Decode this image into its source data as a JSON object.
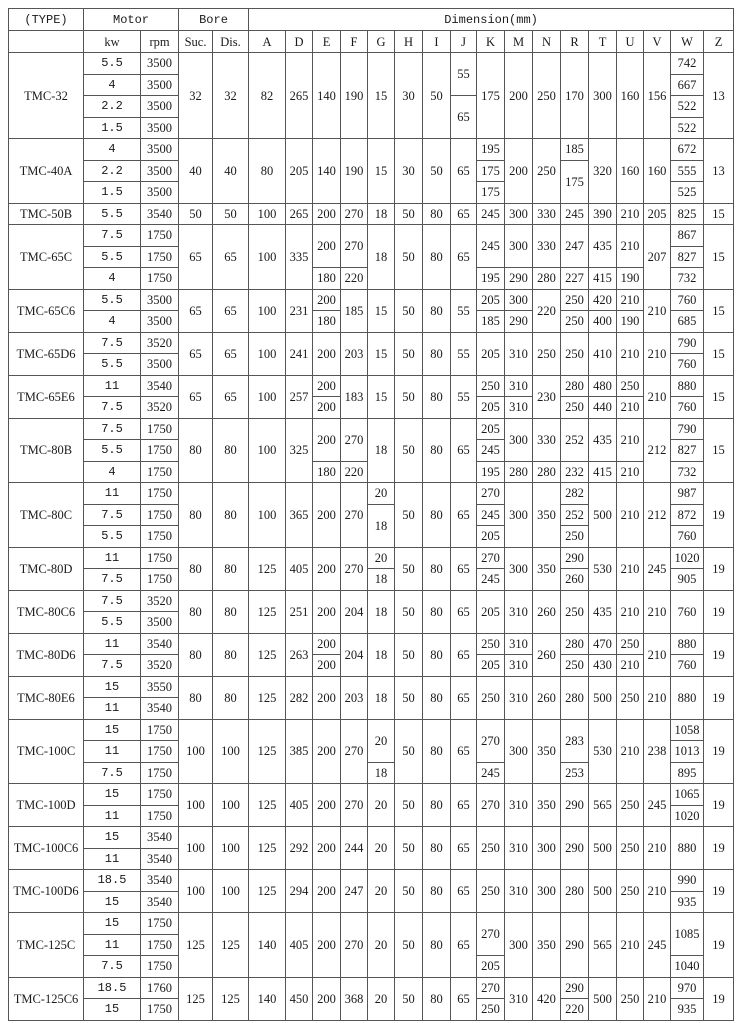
{
  "header": {
    "type": "(TYPE)",
    "motor": "Motor",
    "bore": "Bore",
    "dimension": "Dimension(mm)",
    "kw": "kw",
    "rpm": "rpm",
    "suc": "Suc.",
    "dis": "Dis.",
    "dims": [
      "A",
      "D",
      "E",
      "F",
      "G",
      "H",
      "I",
      "J",
      "K",
      "M",
      "N",
      "R",
      "T",
      "U",
      "V",
      "W",
      "Z"
    ]
  },
  "models": [
    {
      "type": "TMC-32",
      "kw": [
        "5.5",
        "4",
        "2.2",
        "1.5"
      ],
      "rpm": [
        "3500",
        "3500",
        "3500",
        "3500"
      ],
      "suc": "32",
      "dis": "32",
      "dims": [
        "82",
        "265",
        "140",
        "190",
        "15",
        "30",
        "50",
        [
          [
            "55",
            2
          ],
          [
            "65",
            2
          ]
        ],
        "175",
        "200",
        "250",
        "170",
        "300",
        "160",
        "156",
        [
          "742",
          "667",
          "522",
          "522"
        ],
        "13"
      ]
    },
    {
      "type": "TMC-40A",
      "kw": [
        "4",
        "2.2",
        "1.5"
      ],
      "rpm": [
        "3500",
        "3500",
        "3500"
      ],
      "suc": "40",
      "dis": "40",
      "dims": [
        "80",
        "205",
        "140",
        "190",
        "15",
        "30",
        "50",
        "65",
        [
          "195",
          "175",
          "175"
        ],
        "200",
        "250",
        [
          "185",
          [
            "175",
            2
          ]
        ],
        "320",
        "160",
        "160",
        [
          "672",
          "555",
          "525"
        ],
        "13"
      ]
    },
    {
      "type": "TMC-50B",
      "kw": [
        "5.5"
      ],
      "rpm": [
        "3540"
      ],
      "suc": "50",
      "dis": "50",
      "dims": [
        "100",
        "265",
        "200",
        "270",
        "18",
        "50",
        "80",
        "65",
        "245",
        "300",
        "330",
        "245",
        "390",
        "210",
        "205",
        "825",
        "15"
      ]
    },
    {
      "type": "TMC-65C",
      "kw": [
        "7.5",
        "5.5",
        "4"
      ],
      "rpm": [
        "1750",
        "1750",
        "1750"
      ],
      "suc": "65",
      "dis": "65",
      "dims": [
        "100",
        "335",
        [
          [
            "200",
            2
          ],
          "180"
        ],
        [
          [
            "270",
            2
          ],
          "220"
        ],
        "18",
        "50",
        "80",
        "65",
        [
          [
            "245",
            2
          ],
          "195"
        ],
        [
          [
            "300",
            2
          ],
          "290"
        ],
        [
          [
            "330",
            2
          ],
          "280"
        ],
        [
          [
            "247",
            2
          ],
          "227"
        ],
        [
          [
            "435",
            2
          ],
          "415"
        ],
        [
          [
            "210",
            2
          ],
          "190"
        ],
        "207",
        [
          "867",
          "827",
          "732"
        ],
        "15"
      ]
    },
    {
      "type": "TMC-65C6",
      "kw": [
        "5.5",
        "4"
      ],
      "rpm": [
        "3500",
        "3500"
      ],
      "suc": "65",
      "dis": "65",
      "dims": [
        "100",
        "231",
        [
          "200",
          "180"
        ],
        "185",
        "15",
        "50",
        "80",
        "55",
        [
          "205",
          "185"
        ],
        [
          "300",
          "290"
        ],
        "220",
        [
          "250",
          "250"
        ],
        [
          "420",
          "400"
        ],
        [
          "210",
          "190"
        ],
        "210",
        [
          "760",
          "685"
        ],
        "15"
      ]
    },
    {
      "type": "TMC-65D6",
      "kw": [
        "7.5",
        "5.5"
      ],
      "rpm": [
        "3520",
        "3500"
      ],
      "suc": "65",
      "dis": "65",
      "dims": [
        "100",
        "241",
        "200",
        "203",
        "15",
        "50",
        "80",
        "55",
        "205",
        "310",
        "250",
        "250",
        "410",
        "210",
        "210",
        [
          "790",
          "760"
        ],
        "15"
      ]
    },
    {
      "type": "TMC-65E6",
      "kw": [
        "11",
        "7.5"
      ],
      "rpm": [
        "3540",
        "3520"
      ],
      "suc": "65",
      "dis": "65",
      "dims": [
        "100",
        "257",
        [
          "200",
          "200"
        ],
        "183",
        "15",
        "50",
        "80",
        "55",
        [
          "250",
          "205"
        ],
        [
          "310",
          "310"
        ],
        "230",
        [
          "280",
          "250"
        ],
        [
          "480",
          "440"
        ],
        [
          "250",
          "210"
        ],
        "210",
        [
          "880",
          "760"
        ],
        "15"
      ]
    },
    {
      "type": "TMC-80B",
      "kw": [
        "7.5",
        "5.5",
        "4"
      ],
      "rpm": [
        "1750",
        "1750",
        "1750"
      ],
      "suc": "80",
      "dis": "80",
      "dims": [
        "100",
        "325",
        [
          [
            "200",
            2
          ],
          "180"
        ],
        [
          [
            "270",
            2
          ],
          "220"
        ],
        "18",
        "50",
        "80",
        "65",
        [
          "205",
          "245",
          "195"
        ],
        [
          [
            "300",
            2
          ],
          "280"
        ],
        [
          [
            "330",
            2
          ],
          "280"
        ],
        [
          [
            "252",
            2
          ],
          "232"
        ],
        [
          [
            "435",
            2
          ],
          "415"
        ],
        [
          [
            "210",
            2
          ],
          "210"
        ],
        "212",
        [
          "790",
          "827",
          "732"
        ],
        "15"
      ]
    },
    {
      "type": "TMC-80C",
      "kw": [
        "11",
        "7.5",
        "5.5"
      ],
      "rpm": [
        "1750",
        "1750",
        "1750"
      ],
      "suc": "80",
      "dis": "80",
      "dims": [
        "100",
        "365",
        "200",
        "270",
        [
          "20",
          [
            "18",
            2
          ]
        ],
        "50",
        "80",
        "65",
        [
          "270",
          "245",
          "205"
        ],
        "300",
        "350",
        [
          "282",
          "252",
          "250"
        ],
        "500",
        "210",
        "212",
        [
          "987",
          "872",
          "760"
        ],
        "19"
      ]
    },
    {
      "type": "TMC-80D",
      "kw": [
        "11",
        "7.5"
      ],
      "rpm": [
        "1750",
        "1750"
      ],
      "suc": "80",
      "dis": "80",
      "dims": [
        "125",
        "405",
        "200",
        "270",
        [
          "20",
          "18"
        ],
        "50",
        "80",
        "65",
        [
          "270",
          "245"
        ],
        "300",
        "350",
        [
          "290",
          "260"
        ],
        "530",
        "210",
        "245",
        [
          "1020",
          "905"
        ],
        "19"
      ]
    },
    {
      "type": "TMC-80C6",
      "kw": [
        "7.5",
        "5.5"
      ],
      "rpm": [
        "3520",
        "3500"
      ],
      "suc": "80",
      "dis": "80",
      "dims": [
        "125",
        "251",
        "200",
        "204",
        "18",
        "50",
        "80",
        "65",
        "205",
        "310",
        "260",
        "250",
        "435",
        "210",
        "210",
        "760",
        "19"
      ]
    },
    {
      "type": "TMC-80D6",
      "kw": [
        "11",
        "7.5"
      ],
      "rpm": [
        "3540",
        "3520"
      ],
      "suc": "80",
      "dis": "80",
      "dims": [
        "125",
        "263",
        [
          "200",
          "200"
        ],
        "204",
        "18",
        "50",
        "80",
        "65",
        [
          "250",
          "205"
        ],
        [
          "310",
          "310"
        ],
        "260",
        [
          "280",
          "250"
        ],
        [
          "470",
          "430"
        ],
        [
          "250",
          "210"
        ],
        "210",
        [
          "880",
          "760"
        ],
        "19"
      ]
    },
    {
      "type": "TMC-80E6",
      "kw": [
        "15",
        "11"
      ],
      "rpm": [
        "3550",
        "3540"
      ],
      "suc": "80",
      "dis": "80",
      "dims": [
        "125",
        "282",
        "200",
        "203",
        "18",
        "50",
        "80",
        "65",
        "250",
        "310",
        "260",
        "280",
        "500",
        "250",
        "210",
        "880",
        "19"
      ]
    },
    {
      "type": "TMC-100C",
      "kw": [
        "15",
        "11",
        "7.5"
      ],
      "rpm": [
        "1750",
        "1750",
        "1750"
      ],
      "suc": "100",
      "dis": "100",
      "dims": [
        "125",
        "385",
        "200",
        "270",
        [
          [
            "20",
            2
          ],
          "18"
        ],
        "50",
        "80",
        "65",
        [
          [
            "270",
            2
          ],
          "245"
        ],
        "300",
        "350",
        [
          [
            "283",
            2
          ],
          "253"
        ],
        "530",
        "210",
        "238",
        [
          "1058",
          "1013",
          "895"
        ],
        "19"
      ]
    },
    {
      "type": "TMC-100D",
      "kw": [
        "15",
        "11"
      ],
      "rpm": [
        "1750",
        "1750"
      ],
      "suc": "100",
      "dis": "100",
      "dims": [
        "125",
        "405",
        "200",
        "270",
        "20",
        "50",
        "80",
        "65",
        "270",
        "310",
        "350",
        "290",
        "565",
        "250",
        "245",
        [
          "1065",
          "1020"
        ],
        "19"
      ]
    },
    {
      "type": "TMC-100C6",
      "kw": [
        "15",
        "11"
      ],
      "rpm": [
        "3540",
        "3540"
      ],
      "suc": "100",
      "dis": "100",
      "dims": [
        "125",
        "292",
        "200",
        "244",
        "20",
        "50",
        "80",
        "65",
        "250",
        "310",
        "300",
        "290",
        "500",
        "250",
        "210",
        "880",
        "19"
      ]
    },
    {
      "type": "TMC-100D6",
      "kw": [
        "18.5",
        "15"
      ],
      "rpm": [
        "3540",
        "3540"
      ],
      "suc": "100",
      "dis": "100",
      "dims": [
        "125",
        "294",
        "200",
        "247",
        "20",
        "50",
        "80",
        "65",
        "250",
        "310",
        "300",
        "280",
        "500",
        "250",
        "210",
        [
          "990",
          "935"
        ],
        "19"
      ]
    },
    {
      "type": "TMC-125C",
      "kw": [
        "15",
        "11",
        "7.5"
      ],
      "rpm": [
        "1750",
        "1750",
        "1750"
      ],
      "suc": "125",
      "dis": "125",
      "dims": [
        "140",
        "405",
        "200",
        "270",
        "20",
        "50",
        "80",
        "65",
        [
          [
            "270",
            2
          ],
          "205"
        ],
        "300",
        "350",
        "290",
        "565",
        "210",
        "245",
        [
          [
            "1085",
            2
          ],
          "1040"
        ],
        "19"
      ]
    },
    {
      "type": "TMC-125C6",
      "kw": [
        "18.5",
        "15"
      ],
      "rpm": [
        "1760",
        "1750"
      ],
      "suc": "125",
      "dis": "125",
      "dims": [
        "140",
        "450",
        "200",
        "368",
        "20",
        "50",
        "80",
        "65",
        [
          "270",
          "250"
        ],
        "310",
        "420",
        [
          "290",
          "220"
        ],
        "500",
        "250",
        "210",
        [
          "970",
          "935"
        ],
        "19"
      ]
    }
  ]
}
